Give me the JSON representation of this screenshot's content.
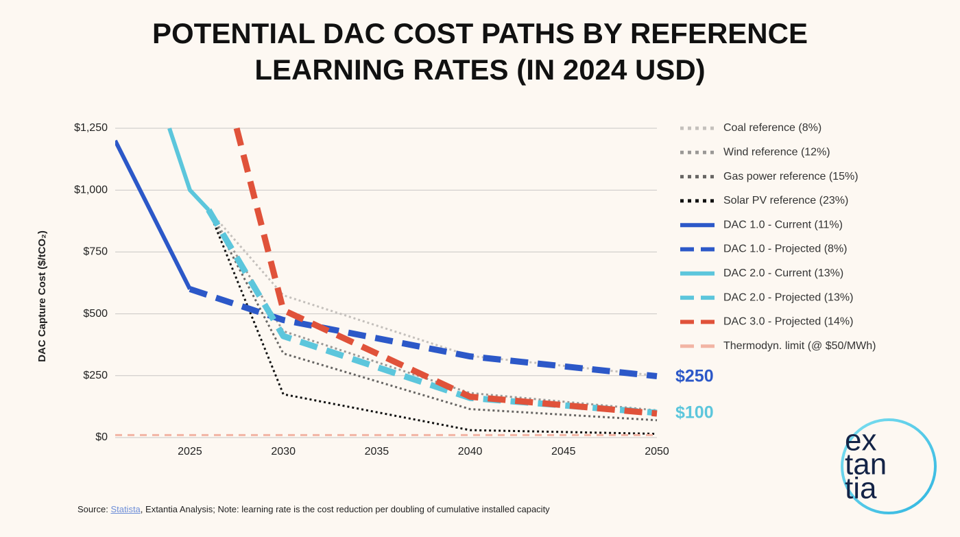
{
  "chart_data": {
    "type": "line",
    "title": "POTENTIAL DAC COST PATHS BY REFERENCE LEARNING RATES (IN 2024 USD)",
    "y_label": "DAC Capture Cost ($/tCO₂)",
    "xlim": [
      2021,
      2050
    ],
    "xticks": [
      2025,
      2030,
      2035,
      2040,
      2045,
      2050
    ],
    "ylim": [
      0,
      1250
    ],
    "yticks": [
      {
        "value": 0,
        "label": "$0"
      },
      {
        "value": 250,
        "label": "$250"
      },
      {
        "value": 500,
        "label": "$500"
      },
      {
        "value": 750,
        "label": "$750"
      },
      {
        "value": 1000,
        "label": "$1,000"
      },
      {
        "value": 1250,
        "label": "$1,250"
      }
    ],
    "grid": true,
    "legend": "right",
    "series": [
      {
        "name": "Coal reference (8%)",
        "color": "#c4c0bc",
        "style": "dotted",
        "x": [
          2026,
          2030,
          2040,
          2050
        ],
        "values": [
          920,
          575,
          330,
          250
        ]
      },
      {
        "name": "Wind reference (12%)",
        "color": "#9a9896",
        "style": "dotted",
        "x": [
          2026,
          2030,
          2040,
          2050
        ],
        "values": [
          920,
          430,
          180,
          110
        ]
      },
      {
        "name": "Gas power reference (15%)",
        "color": "#686664",
        "style": "dotted",
        "x": [
          2026,
          2030,
          2040,
          2050
        ],
        "values": [
          920,
          340,
          115,
          70
        ]
      },
      {
        "name": "Solar PV reference (23%)",
        "color": "#111111",
        "style": "dotted",
        "x": [
          2026,
          2030,
          2040,
          2050
        ],
        "values": [
          920,
          175,
          30,
          15
        ]
      },
      {
        "name": "DAC 1.0 - Current (11%)",
        "color": "#2c58c8",
        "style": "solid",
        "x": [
          2021,
          2025
        ],
        "values": [
          1200,
          600
        ]
      },
      {
        "name": "DAC 1.0 - Projected (8%)",
        "color": "#2c58c8",
        "style": "dashed",
        "x": [
          2025,
          2030,
          2040,
          2050
        ],
        "values": [
          600,
          475,
          328,
          248
        ]
      },
      {
        "name": "DAC 2.0 - Current (13%)",
        "color": "#5cc6dc",
        "style": "solid",
        "x": [
          2023.9,
          2025,
          2026
        ],
        "values": [
          1250,
          1000,
          920
        ]
      },
      {
        "name": "DAC 2.0 - Projected (13%)",
        "color": "#5cc6dc",
        "style": "dashed",
        "x": [
          2026,
          2030,
          2040,
          2050
        ],
        "values": [
          920,
          410,
          160,
          100
        ]
      },
      {
        "name": "DAC 3.0 - Projected (14%)",
        "color": "#e0523a",
        "style": "dashed",
        "x": [
          2027.5,
          2030,
          2040,
          2050
        ],
        "values": [
          1250,
          515,
          165,
          97
        ]
      },
      {
        "name": "Thermodyn. limit (@ $50/MWh)",
        "color": "#f2b4a4",
        "style": "dashed-thin",
        "x": [
          2021,
          2050
        ],
        "values": [
          10,
          10
        ]
      }
    ],
    "annotations": [
      "$250",
      "$100"
    ],
    "source": {
      "prefix": "Source:",
      "link": "Statista",
      "text": ", Extantia Analysis; Note: learning rate is the cost reduction per doubling of cumulative installed capacity"
    },
    "logo": [
      "ex",
      "tan",
      "tia"
    ]
  }
}
